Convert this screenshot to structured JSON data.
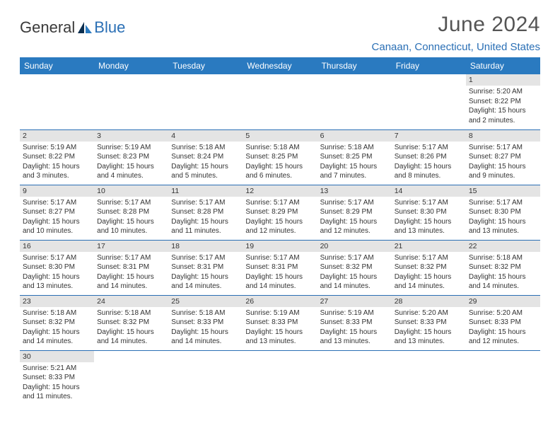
{
  "brand": {
    "part1": "General",
    "part2": "Blue"
  },
  "title": "June 2024",
  "location": "Canaan, Connecticut, United States",
  "colors": {
    "header_bg": "#2a7ac0",
    "header_text": "#ffffff",
    "accent": "#2a6fb5",
    "daynum_bg": "#e4e4e4",
    "text": "#333333",
    "title_text": "#555555",
    "background": "#ffffff"
  },
  "typography": {
    "title_fontsize": 30,
    "location_fontsize": 15,
    "weekday_fontsize": 12,
    "cell_fontsize": 10
  },
  "weekdays": [
    "Sunday",
    "Monday",
    "Tuesday",
    "Wednesday",
    "Thursday",
    "Friday",
    "Saturday"
  ],
  "layout": {
    "first_weekday_index": 6,
    "rows": 6,
    "cols": 7
  },
  "days": [
    {
      "n": 1,
      "sunrise": "5:20 AM",
      "sunset": "8:22 PM",
      "daylight": "15 hours and 2 minutes."
    },
    {
      "n": 2,
      "sunrise": "5:19 AM",
      "sunset": "8:22 PM",
      "daylight": "15 hours and 3 minutes."
    },
    {
      "n": 3,
      "sunrise": "5:19 AM",
      "sunset": "8:23 PM",
      "daylight": "15 hours and 4 minutes."
    },
    {
      "n": 4,
      "sunrise": "5:18 AM",
      "sunset": "8:24 PM",
      "daylight": "15 hours and 5 minutes."
    },
    {
      "n": 5,
      "sunrise": "5:18 AM",
      "sunset": "8:25 PM",
      "daylight": "15 hours and 6 minutes."
    },
    {
      "n": 6,
      "sunrise": "5:18 AM",
      "sunset": "8:25 PM",
      "daylight": "15 hours and 7 minutes."
    },
    {
      "n": 7,
      "sunrise": "5:17 AM",
      "sunset": "8:26 PM",
      "daylight": "15 hours and 8 minutes."
    },
    {
      "n": 8,
      "sunrise": "5:17 AM",
      "sunset": "8:27 PM",
      "daylight": "15 hours and 9 minutes."
    },
    {
      "n": 9,
      "sunrise": "5:17 AM",
      "sunset": "8:27 PM",
      "daylight": "15 hours and 10 minutes."
    },
    {
      "n": 10,
      "sunrise": "5:17 AM",
      "sunset": "8:28 PM",
      "daylight": "15 hours and 10 minutes."
    },
    {
      "n": 11,
      "sunrise": "5:17 AM",
      "sunset": "8:28 PM",
      "daylight": "15 hours and 11 minutes."
    },
    {
      "n": 12,
      "sunrise": "5:17 AM",
      "sunset": "8:29 PM",
      "daylight": "15 hours and 12 minutes."
    },
    {
      "n": 13,
      "sunrise": "5:17 AM",
      "sunset": "8:29 PM",
      "daylight": "15 hours and 12 minutes."
    },
    {
      "n": 14,
      "sunrise": "5:17 AM",
      "sunset": "8:30 PM",
      "daylight": "15 hours and 13 minutes."
    },
    {
      "n": 15,
      "sunrise": "5:17 AM",
      "sunset": "8:30 PM",
      "daylight": "15 hours and 13 minutes."
    },
    {
      "n": 16,
      "sunrise": "5:17 AM",
      "sunset": "8:30 PM",
      "daylight": "15 hours and 13 minutes."
    },
    {
      "n": 17,
      "sunrise": "5:17 AM",
      "sunset": "8:31 PM",
      "daylight": "15 hours and 14 minutes."
    },
    {
      "n": 18,
      "sunrise": "5:17 AM",
      "sunset": "8:31 PM",
      "daylight": "15 hours and 14 minutes."
    },
    {
      "n": 19,
      "sunrise": "5:17 AM",
      "sunset": "8:31 PM",
      "daylight": "15 hours and 14 minutes."
    },
    {
      "n": 20,
      "sunrise": "5:17 AM",
      "sunset": "8:32 PM",
      "daylight": "15 hours and 14 minutes."
    },
    {
      "n": 21,
      "sunrise": "5:17 AM",
      "sunset": "8:32 PM",
      "daylight": "15 hours and 14 minutes."
    },
    {
      "n": 22,
      "sunrise": "5:18 AM",
      "sunset": "8:32 PM",
      "daylight": "15 hours and 14 minutes."
    },
    {
      "n": 23,
      "sunrise": "5:18 AM",
      "sunset": "8:32 PM",
      "daylight": "15 hours and 14 minutes."
    },
    {
      "n": 24,
      "sunrise": "5:18 AM",
      "sunset": "8:32 PM",
      "daylight": "15 hours and 14 minutes."
    },
    {
      "n": 25,
      "sunrise": "5:18 AM",
      "sunset": "8:33 PM",
      "daylight": "15 hours and 14 minutes."
    },
    {
      "n": 26,
      "sunrise": "5:19 AM",
      "sunset": "8:33 PM",
      "daylight": "15 hours and 13 minutes."
    },
    {
      "n": 27,
      "sunrise": "5:19 AM",
      "sunset": "8:33 PM",
      "daylight": "15 hours and 13 minutes."
    },
    {
      "n": 28,
      "sunrise": "5:20 AM",
      "sunset": "8:33 PM",
      "daylight": "15 hours and 13 minutes."
    },
    {
      "n": 29,
      "sunrise": "5:20 AM",
      "sunset": "8:33 PM",
      "daylight": "15 hours and 12 minutes."
    },
    {
      "n": 30,
      "sunrise": "5:21 AM",
      "sunset": "8:33 PM",
      "daylight": "15 hours and 11 minutes."
    }
  ],
  "labels": {
    "sunrise": "Sunrise:",
    "sunset": "Sunset:",
    "daylight": "Daylight:"
  }
}
